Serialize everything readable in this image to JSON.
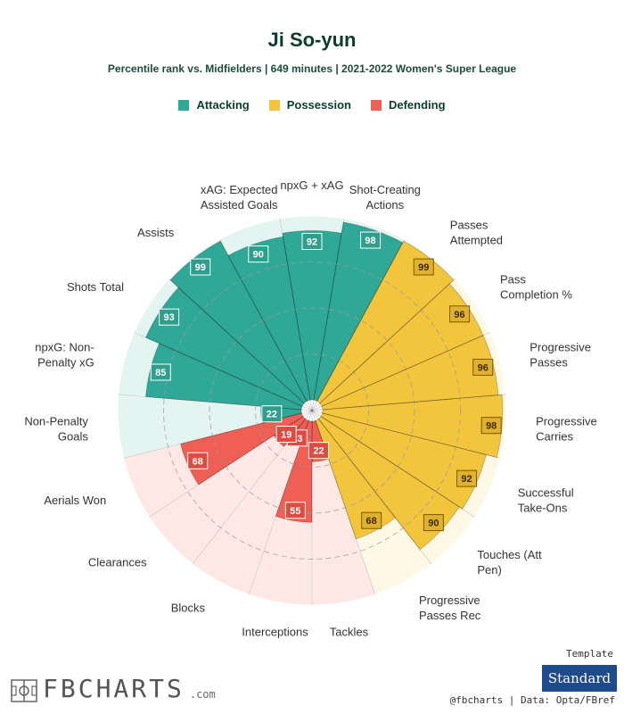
{
  "header": {
    "title": "Ji So-yun",
    "subtitle": "Percentile rank vs. Midfielders | 649 minutes | 2021-2022 Women's Super League"
  },
  "legend": [
    {
      "label": "Attacking",
      "color": "#2fa897"
    },
    {
      "label": "Possession",
      "color": "#f2c53d"
    },
    {
      "label": "Defending",
      "color": "#ef5f55"
    }
  ],
  "chart_data": {
    "type": "polar-bar",
    "title": "Ji So-yun",
    "rmax": 100,
    "grid_rings": [
      25,
      50,
      75
    ],
    "categories": [
      {
        "label": "npxG + xAG",
        "value": 92,
        "group": "Attacking"
      },
      {
        "label": "Shot-Creating\nActions",
        "value": 98,
        "group": "Attacking"
      },
      {
        "label": "Passes\nAttempted",
        "value": 99,
        "group": "Possession"
      },
      {
        "label": "Pass\nCompletion %",
        "value": 96,
        "group": "Possession"
      },
      {
        "label": "Progressive\nPasses",
        "value": 96,
        "group": "Possession"
      },
      {
        "label": "Progressive\nCarries",
        "value": 98,
        "group": "Possession"
      },
      {
        "label": "Successful\nTake-Ons",
        "value": 92,
        "group": "Possession"
      },
      {
        "label": "Touches (Att\nPen)",
        "value": 90,
        "group": "Possession"
      },
      {
        "label": "Progressive\nPasses Rec",
        "value": 68,
        "group": "Possession"
      },
      {
        "label": "Tackles",
        "value": 22,
        "group": "Defending"
      },
      {
        "label": "Interceptions",
        "value": 55,
        "group": "Defending"
      },
      {
        "label": "Blocks",
        "value": 13,
        "group": "Defending"
      },
      {
        "label": "Clearances",
        "value": 19,
        "group": "Defending"
      },
      {
        "label": "Aerials Won",
        "value": 68,
        "group": "Defending"
      },
      {
        "label": "Non-Penalty\nGoals",
        "value": 22,
        "group": "Attacking"
      },
      {
        "label": "npxG: Non-\nPenalty xG",
        "value": 85,
        "group": "Attacking"
      },
      {
        "label": "Shots Total",
        "value": 93,
        "group": "Attacking"
      },
      {
        "label": "Assists",
        "value": 99,
        "group": "Attacking"
      },
      {
        "label": "xAG: Expected\nAssisted Goals",
        "value": 90,
        "group": "Attacking"
      }
    ],
    "colors": {
      "Attacking": {
        "fill": "#2fa897",
        "bg": "#e4f4f1",
        "badge": "#2f9e8c"
      },
      "Possession": {
        "fill": "#f2c53d",
        "bg": "#fef8e4",
        "badge": "#e0b12a"
      },
      "Defending": {
        "fill": "#ef5f55",
        "bg": "#fde8e6",
        "badge": "#e04a40"
      }
    }
  },
  "template": {
    "label": "Template",
    "button": "Standard"
  },
  "brand": {
    "logo": "FBCHARTS",
    "domain": ".com"
  },
  "footer": {
    "credit": "@fbcharts | Data: Opta/FBref"
  }
}
